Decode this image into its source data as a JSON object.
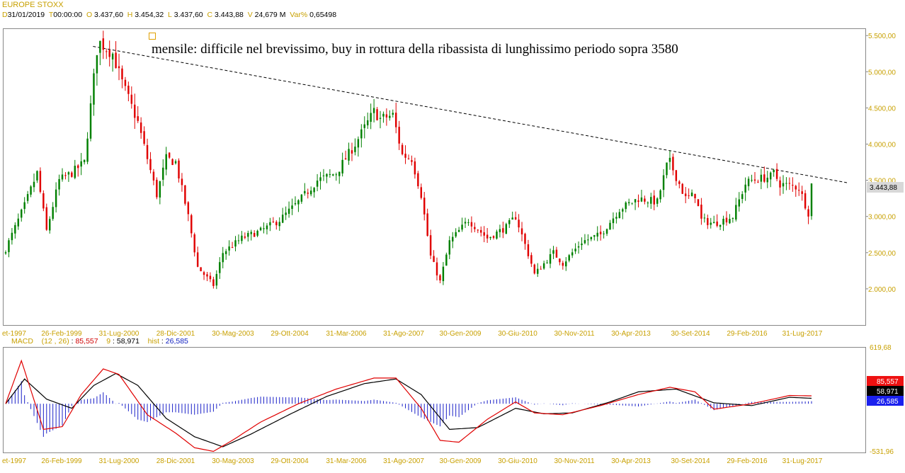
{
  "header": {
    "title": "EUROPE STOXX",
    "d_label": "D",
    "d_value": "31/01/2019",
    "t_label": "T",
    "t_value": "00:00:00",
    "o_label": "O",
    "o_value": "3.437,60",
    "h_label": "H",
    "h_value": "3.454,32",
    "l_label": "L",
    "l_value": "3.437,60",
    "c_label": "C",
    "c_value": "3.443,88",
    "v_label": "V",
    "v_value": "24,679 M",
    "var_label": "Var%",
    "var_value": "0,65498"
  },
  "annotation": {
    "text": "mensile: difficile nel brevissimo, buy in rottura della ribassista di lunghissimo periodo sopra 3580"
  },
  "price_badge": "3.443,88",
  "macd_legend": {
    "name": "MACD",
    "params": "(12 , 26)",
    "macd_value": "85,557",
    "signal_period": "9",
    "signal_value": "58,971",
    "hist_label": "hist",
    "hist_value": "26,585"
  },
  "macd_badges": {
    "macd": "85,557",
    "signal": "58,971",
    "hist": "26,585"
  },
  "macd_axis": {
    "top": "619,68",
    "bottom": "-531,96"
  },
  "colors": {
    "up": "#008000",
    "down": "#e00000",
    "macd": "#e00000",
    "signal": "#000000",
    "hist": "#1a20c8",
    "tick": "#c8a000"
  },
  "chart_data": {
    "type": "candlestick",
    "title": "EUROPE STOXX",
    "interval": "monthly",
    "y_ticks": [
      "2.000,00",
      "2.500,00",
      "3.000,00",
      "3.500,00",
      "4.000,00",
      "4.500,00",
      "5.000,00",
      "5.500,00"
    ],
    "ylim": [
      1500,
      5600
    ],
    "x_ticks": [
      "et-1997",
      "26-Feb-1999",
      "31-Lug-2000",
      "28-Dic-2001",
      "30-Mag-2003",
      "29-Ott-2004",
      "31-Mar-2006",
      "31-Ago-2007",
      "30-Gen-2009",
      "30-Giu-2010",
      "30-Nov-2011",
      "30-Apr-2013",
      "30-Set-2014",
      "29-Feb-2016",
      "31-Lug-2017"
    ],
    "x_range": [
      "1997-09",
      "2019-01"
    ],
    "price_path": [
      [
        "1997-09",
        2550
      ],
      [
        "1998-03",
        3150
      ],
      [
        "1998-07",
        3600
      ],
      [
        "1998-10",
        2800
      ],
      [
        "1999-02",
        3500
      ],
      [
        "1999-06",
        3600
      ],
      [
        "1999-10",
        3750
      ],
      [
        "2000-02",
        5300
      ],
      [
        "2000-03",
        5400
      ],
      [
        "2000-07",
        5250
      ],
      [
        "2000-10",
        4850
      ],
      [
        "2001-03",
        4300
      ],
      [
        "2001-09",
        3300
      ],
      [
        "2001-12",
        3800
      ],
      [
        "2002-03",
        3750
      ],
      [
        "2002-07",
        3000
      ],
      [
        "2002-10",
        2300
      ],
      [
        "2003-03",
        2050
      ],
      [
        "2003-06",
        2500
      ],
      [
        "2003-12",
        2700
      ],
      [
        "2004-06",
        2800
      ],
      [
        "2004-12",
        2950
      ],
      [
        "2005-06",
        3200
      ],
      [
        "2005-12",
        3500
      ],
      [
        "2006-06",
        3600
      ],
      [
        "2006-12",
        4000
      ],
      [
        "2007-06",
        4450
      ],
      [
        "2007-08",
        4350
      ],
      [
        "2007-12",
        4400
      ],
      [
        "2008-03",
        3850
      ],
      [
        "2008-06",
        3800
      ],
      [
        "2008-09",
        3300
      ],
      [
        "2008-12",
        2450
      ],
      [
        "2009-03",
        2100
      ],
      [
        "2009-06",
        2650
      ],
      [
        "2009-12",
        2950
      ],
      [
        "2010-06",
        2700
      ],
      [
        "2010-12",
        2850
      ],
      [
        "2011-03",
        3000
      ],
      [
        "2011-08",
        2350
      ],
      [
        "2011-09",
        2200
      ],
      [
        "2012-03",
        2500
      ],
      [
        "2012-06",
        2350
      ],
      [
        "2012-12",
        2650
      ],
      [
        "2013-06",
        2750
      ],
      [
        "2013-12",
        3100
      ],
      [
        "2014-06",
        3250
      ],
      [
        "2014-12",
        3200
      ],
      [
        "2015-03",
        3700
      ],
      [
        "2015-04",
        3750
      ],
      [
        "2015-09",
        3250
      ],
      [
        "2015-12",
        3300
      ],
      [
        "2016-02",
        2950
      ],
      [
        "2016-06",
        2900
      ],
      [
        "2016-12",
        3000
      ],
      [
        "2017-04",
        3450
      ],
      [
        "2017-06",
        3500
      ],
      [
        "2017-12",
        3550
      ],
      [
        "2018-01",
        3600
      ],
      [
        "2018-03",
        3450
      ],
      [
        "2018-09",
        3400
      ],
      [
        "2018-12",
        3050
      ],
      [
        "2019-01",
        3444
      ]
    ],
    "trendline": {
      "style": "dashed",
      "from": [
        "2000-03",
        5350
      ],
      "to": [
        "2019-01",
        3500
      ]
    },
    "last_close": 3443.88,
    "macd": {
      "fast": 12,
      "slow": 26,
      "signal": 9,
      "ylim": [
        -531.96,
        619.68
      ],
      "last_macd": 85.557,
      "last_signal": 58.971,
      "last_hist": 26.585,
      "macd_path": [
        [
          "1997-09",
          0
        ],
        [
          "1998-02",
          470
        ],
        [
          "1998-09",
          -280
        ],
        [
          "1999-03",
          -250
        ],
        [
          "1999-09",
          100
        ],
        [
          "2000-04",
          380
        ],
        [
          "2000-09",
          320
        ],
        [
          "2001-06",
          -120
        ],
        [
          "2002-03",
          -320
        ],
        [
          "2002-09",
          -480
        ],
        [
          "2003-03",
          -520
        ],
        [
          "2003-09",
          -400
        ],
        [
          "2004-06",
          -200
        ],
        [
          "2005-06",
          0
        ],
        [
          "2006-06",
          160
        ],
        [
          "2007-06",
          280
        ],
        [
          "2008-01",
          280
        ],
        [
          "2008-09",
          -50
        ],
        [
          "2009-03",
          -400
        ],
        [
          "2009-09",
          -420
        ],
        [
          "2010-06",
          -170
        ],
        [
          "2011-03",
          20
        ],
        [
          "2011-09",
          -100
        ],
        [
          "2012-06",
          -120
        ],
        [
          "2013-06",
          -20
        ],
        [
          "2014-06",
          100
        ],
        [
          "2015-04",
          180
        ],
        [
          "2015-12",
          130
        ],
        [
          "2016-06",
          -60
        ],
        [
          "2017-06",
          0
        ],
        [
          "2018-06",
          90
        ],
        [
          "2019-01",
          86
        ]
      ],
      "signal_path": [
        [
          "1997-09",
          0
        ],
        [
          "1998-03",
          270
        ],
        [
          "1998-10",
          50
        ],
        [
          "1999-06",
          -50
        ],
        [
          "2000-01",
          200
        ],
        [
          "2000-08",
          330
        ],
        [
          "2001-03",
          200
        ],
        [
          "2001-12",
          -160
        ],
        [
          "2002-09",
          -360
        ],
        [
          "2003-06",
          -470
        ],
        [
          "2004-03",
          -330
        ],
        [
          "2005-03",
          -120
        ],
        [
          "2006-03",
          80
        ],
        [
          "2007-03",
          220
        ],
        [
          "2008-01",
          270
        ],
        [
          "2008-09",
          100
        ],
        [
          "2009-06",
          -280
        ],
        [
          "2010-03",
          -260
        ],
        [
          "2011-03",
          -50
        ],
        [
          "2011-12",
          -110
        ],
        [
          "2012-09",
          -100
        ],
        [
          "2013-09",
          20
        ],
        [
          "2014-06",
          130
        ],
        [
          "2015-06",
          160
        ],
        [
          "2016-06",
          10
        ],
        [
          "2017-06",
          -20
        ],
        [
          "2018-06",
          70
        ],
        [
          "2019-01",
          59
        ]
      ]
    }
  }
}
